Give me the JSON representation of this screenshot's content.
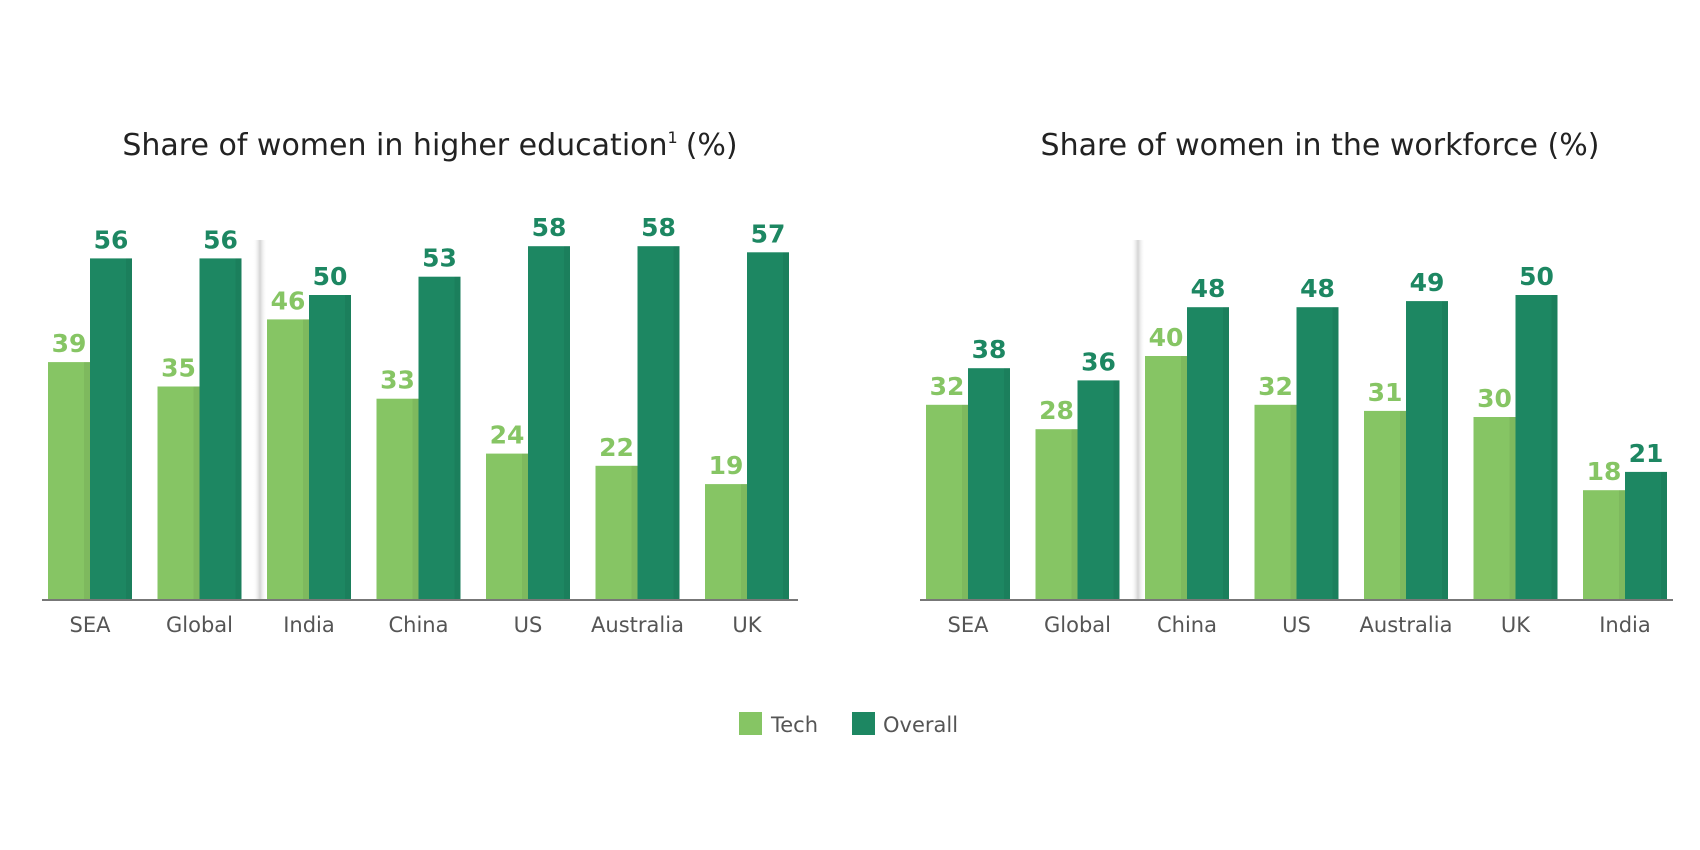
{
  "chart_data": [
    {
      "type": "bar",
      "title": "Share of women in higher education",
      "title_superscript": "1",
      "title_suffix": "(%)",
      "categories": [
        "SEA",
        "Global",
        "India",
        "China",
        "US",
        "Australia",
        "UK"
      ],
      "series": [
        {
          "name": "Tech",
          "values": [
            39,
            35,
            46,
            33,
            24,
            22,
            19
          ]
        },
        {
          "name": "Overall",
          "values": [
            56,
            56,
            50,
            53,
            58,
            58,
            57
          ]
        }
      ],
      "xlabel": "",
      "ylabel": "",
      "ylim": [
        0,
        60
      ]
    },
    {
      "type": "bar",
      "title": "Share of women in the workforce (%)",
      "categories": [
        "SEA",
        "Global",
        "China",
        "US",
        "Australia",
        "UK",
        "India"
      ],
      "series": [
        {
          "name": "Tech",
          "values": [
            32,
            28,
            40,
            32,
            31,
            30,
            18
          ]
        },
        {
          "name": "Overall",
          "values": [
            38,
            36,
            48,
            48,
            49,
            50,
            21
          ]
        }
      ],
      "xlabel": "",
      "ylabel": "",
      "ylim": [
        0,
        60
      ]
    }
  ],
  "legend": {
    "placement": "bottom-center",
    "items": [
      {
        "label": "Tech",
        "color": "#86c564"
      },
      {
        "label": "Overall",
        "color": "#1d8762"
      }
    ]
  },
  "colors": {
    "tech": "#86c564",
    "overall": "#1d8762",
    "axis": "#777777"
  }
}
